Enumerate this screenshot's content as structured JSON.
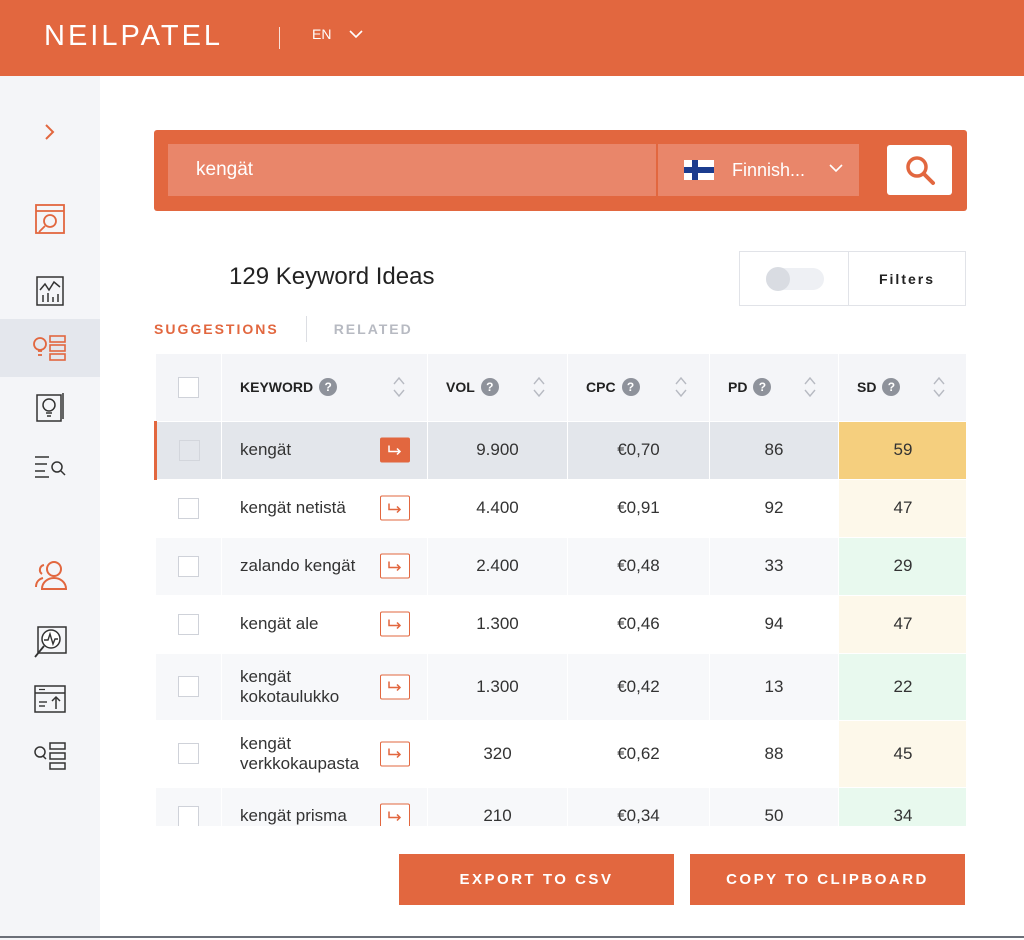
{
  "header": {
    "logo": "NEILPATEL",
    "language": "EN"
  },
  "sidebar": {
    "items": [
      {
        "icon": "chevron-right-icon"
      },
      {
        "icon": "site-audit-icon"
      },
      {
        "icon": "traffic-analyzer-icon"
      },
      {
        "icon": "keyword-ideas-icon",
        "active": true
      },
      {
        "icon": "content-ideas-icon"
      },
      {
        "icon": "keyword-search-icon"
      },
      {
        "icon": "users-icon"
      },
      {
        "icon": "seo-analyzer-icon"
      },
      {
        "icon": "rank-tracker-icon"
      },
      {
        "icon": "list-search-icon"
      }
    ]
  },
  "search": {
    "query": "kengät",
    "language": "Finnish...",
    "accent": "#e2673f"
  },
  "results": {
    "title": "129 Keyword Ideas",
    "filters_label": "Filters"
  },
  "tabs": {
    "suggestions": "SUGGESTIONS",
    "related": "RELATED"
  },
  "table": {
    "columns": [
      "KEYWORD",
      "VOL",
      "CPC",
      "PD",
      "SD"
    ],
    "rows": [
      {
        "keyword": "kengät",
        "vol": "9.900",
        "cpc": "€0,70",
        "pd": "86",
        "sd": "59",
        "sd_color": "#f5cf7e",
        "selected": true
      },
      {
        "keyword": "kengät netistä",
        "vol": "4.400",
        "cpc": "€0,91",
        "pd": "92",
        "sd": "47",
        "sd_color": "#fdf8ea"
      },
      {
        "keyword": "zalando kengät",
        "vol": "2.400",
        "cpc": "€0,48",
        "pd": "33",
        "sd": "29",
        "sd_color": "#e8f9ee"
      },
      {
        "keyword": "kengät ale",
        "vol": "1.300",
        "cpc": "€0,46",
        "pd": "94",
        "sd": "47",
        "sd_color": "#fdf8ea"
      },
      {
        "keyword": "kengät kokotaulukko",
        "vol": "1.300",
        "cpc": "€0,42",
        "pd": "13",
        "sd": "22",
        "sd_color": "#e8f9ee"
      },
      {
        "keyword": "kengät verkkokaupasta",
        "vol": "320",
        "cpc": "€0,62",
        "pd": "88",
        "sd": "45",
        "sd_color": "#fdf8ea"
      },
      {
        "keyword": "kengät prisma",
        "vol": "210",
        "cpc": "€0,34",
        "pd": "50",
        "sd": "34",
        "sd_color": "#e8f9ee"
      }
    ]
  },
  "actions": {
    "export": "EXPORT TO CSV",
    "copy": "COPY TO CLIPBOARD"
  }
}
